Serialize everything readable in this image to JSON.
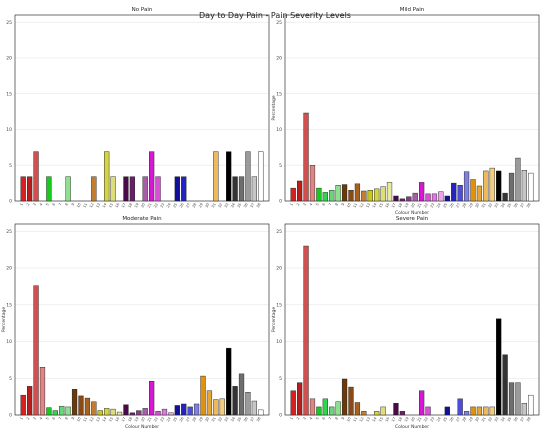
{
  "figure": {
    "suptitle": "Day to Day Pain - Pain Severity Levels"
  },
  "colours": [
    "#d92020",
    "#b81e1e",
    "#d14f4f",
    "#e08585",
    "#18c91e",
    "#2fd64a",
    "#67d67a",
    "#8ee08f",
    "#6b3a0a",
    "#8a4a14",
    "#a8621e",
    "#c27d2e",
    "#c8c81e",
    "#d4d44a",
    "#dede78",
    "#eaea9c",
    "#4a0a4a",
    "#6a1f6a",
    "#8a3a8a",
    "#a65fa6",
    "#d618d6",
    "#d94ed9",
    "#df78df",
    "#e8a6e8",
    "#10109a",
    "#2323c2",
    "#4d4dd6",
    "#8080e0",
    "#e0920f",
    "#e6a635",
    "#ecb95c",
    "#f0cc85",
    "#000000",
    "#333333",
    "#6e6e6e",
    "#9a9a9a",
    "#c6c6c6",
    "#ffffff"
  ],
  "chart_data": [
    {
      "type": "bar",
      "title": "No Pain",
      "xlabel": "",
      "ylabel": "",
      "ylim": [
        0,
        26
      ],
      "yticks": [
        0,
        5,
        10,
        15,
        20,
        25
      ],
      "categories": [
        "1",
        "2",
        "3",
        "4",
        "5",
        "6",
        "7",
        "8",
        "9",
        "10",
        "11",
        "12",
        "13",
        "14",
        "15",
        "16",
        "17",
        "18",
        "19",
        "20",
        "21",
        "22",
        "23",
        "24",
        "25",
        "26",
        "27",
        "28",
        "29",
        "30",
        "31",
        "32",
        "33",
        "34",
        "35",
        "36",
        "37",
        "38"
      ],
      "values": [
        3.4,
        3.4,
        6.9,
        0,
        3.4,
        0,
        0,
        3.4,
        0,
        0,
        0,
        3.4,
        0,
        6.9,
        3.4,
        0,
        3.4,
        3.4,
        0,
        3.4,
        6.9,
        3.4,
        0,
        0,
        3.4,
        3.4,
        0,
        0,
        0,
        0,
        6.9,
        0,
        6.9,
        3.4,
        3.4,
        6.9,
        3.4,
        6.9
      ]
    },
    {
      "type": "bar",
      "title": "Mild Pain",
      "xlabel": "Colour Number",
      "ylabel": "Percentage",
      "ylim": [
        0,
        26
      ],
      "yticks": [
        0,
        5,
        10,
        15,
        20,
        25
      ],
      "categories": [
        "1",
        "2",
        "3",
        "4",
        "5",
        "6",
        "7",
        "8",
        "9",
        "10",
        "11",
        "12",
        "13",
        "14",
        "15",
        "16",
        "17",
        "18",
        "19",
        "20",
        "21",
        "22",
        "23",
        "24",
        "25",
        "26",
        "27",
        "28",
        "29",
        "30",
        "31",
        "32",
        "33",
        "34",
        "35",
        "36",
        "37",
        "38"
      ],
      "values": [
        1.8,
        2.8,
        12.3,
        5.0,
        1.8,
        1.2,
        1.5,
        2.2,
        2.3,
        1.5,
        2.4,
        1.4,
        1.5,
        1.7,
        2.0,
        2.6,
        0.7,
        0.3,
        0.6,
        1.1,
        2.6,
        1.0,
        1.0,
        1.3,
        0.7,
        2.5,
        2.2,
        4.1,
        3.0,
        2.1,
        4.2,
        4.6,
        4.2,
        1.1,
        3.9,
        6.0,
        4.3,
        3.9
      ]
    },
    {
      "type": "bar",
      "title": "Moderate Pain",
      "xlabel": "Colour Number",
      "ylabel": "Percentage",
      "ylim": [
        0,
        26
      ],
      "yticks": [
        0,
        5,
        10,
        15,
        20,
        25
      ],
      "categories": [
        "1",
        "2",
        "3",
        "4",
        "5",
        "6",
        "7",
        "8",
        "9",
        "10",
        "11",
        "12",
        "13",
        "14",
        "15",
        "16",
        "17",
        "18",
        "19",
        "20",
        "21",
        "22",
        "23",
        "24",
        "25",
        "26",
        "27",
        "28",
        "29",
        "30",
        "31",
        "32",
        "33",
        "34",
        "35",
        "36",
        "37",
        "38"
      ],
      "values": [
        2.7,
        3.9,
        17.6,
        6.5,
        1.0,
        0.6,
        1.2,
        1.1,
        3.5,
        2.6,
        2.3,
        1.8,
        0.6,
        0.9,
        0.8,
        0.4,
        1.4,
        0.3,
        0.6,
        0.9,
        4.6,
        0.5,
        0.8,
        0.3,
        1.3,
        1.5,
        1.1,
        1.5,
        5.3,
        3.3,
        2.1,
        2.2,
        9.1,
        3.9,
        5.6,
        3.1,
        1.9,
        0.7
      ]
    },
    {
      "type": "bar",
      "title": "Severe Pain",
      "xlabel": "Colour Number",
      "ylabel": "Percentage",
      "ylim": [
        0,
        26
      ],
      "yticks": [
        0,
        5,
        10,
        15,
        20,
        25
      ],
      "categories": [
        "1",
        "2",
        "3",
        "4",
        "5",
        "6",
        "7",
        "8",
        "9",
        "10",
        "11",
        "12",
        "13",
        "14",
        "15",
        "16",
        "17",
        "18",
        "19",
        "20",
        "21",
        "22",
        "23",
        "24",
        "25",
        "26",
        "27",
        "28",
        "29",
        "30",
        "31",
        "32",
        "33",
        "34",
        "35",
        "36",
        "37",
        "38"
      ],
      "values": [
        3.3,
        4.4,
        23.0,
        2.2,
        1.1,
        2.2,
        1.1,
        1.8,
        4.9,
        3.8,
        1.7,
        0.5,
        0,
        0.5,
        1.1,
        0,
        1.6,
        0.5,
        0,
        0,
        3.3,
        1.1,
        0,
        0,
        1.1,
        0,
        2.2,
        0.5,
        1.1,
        1.1,
        1.1,
        1.1,
        13.1,
        8.2,
        4.4,
        4.4,
        1.6,
        2.7
      ]
    }
  ]
}
